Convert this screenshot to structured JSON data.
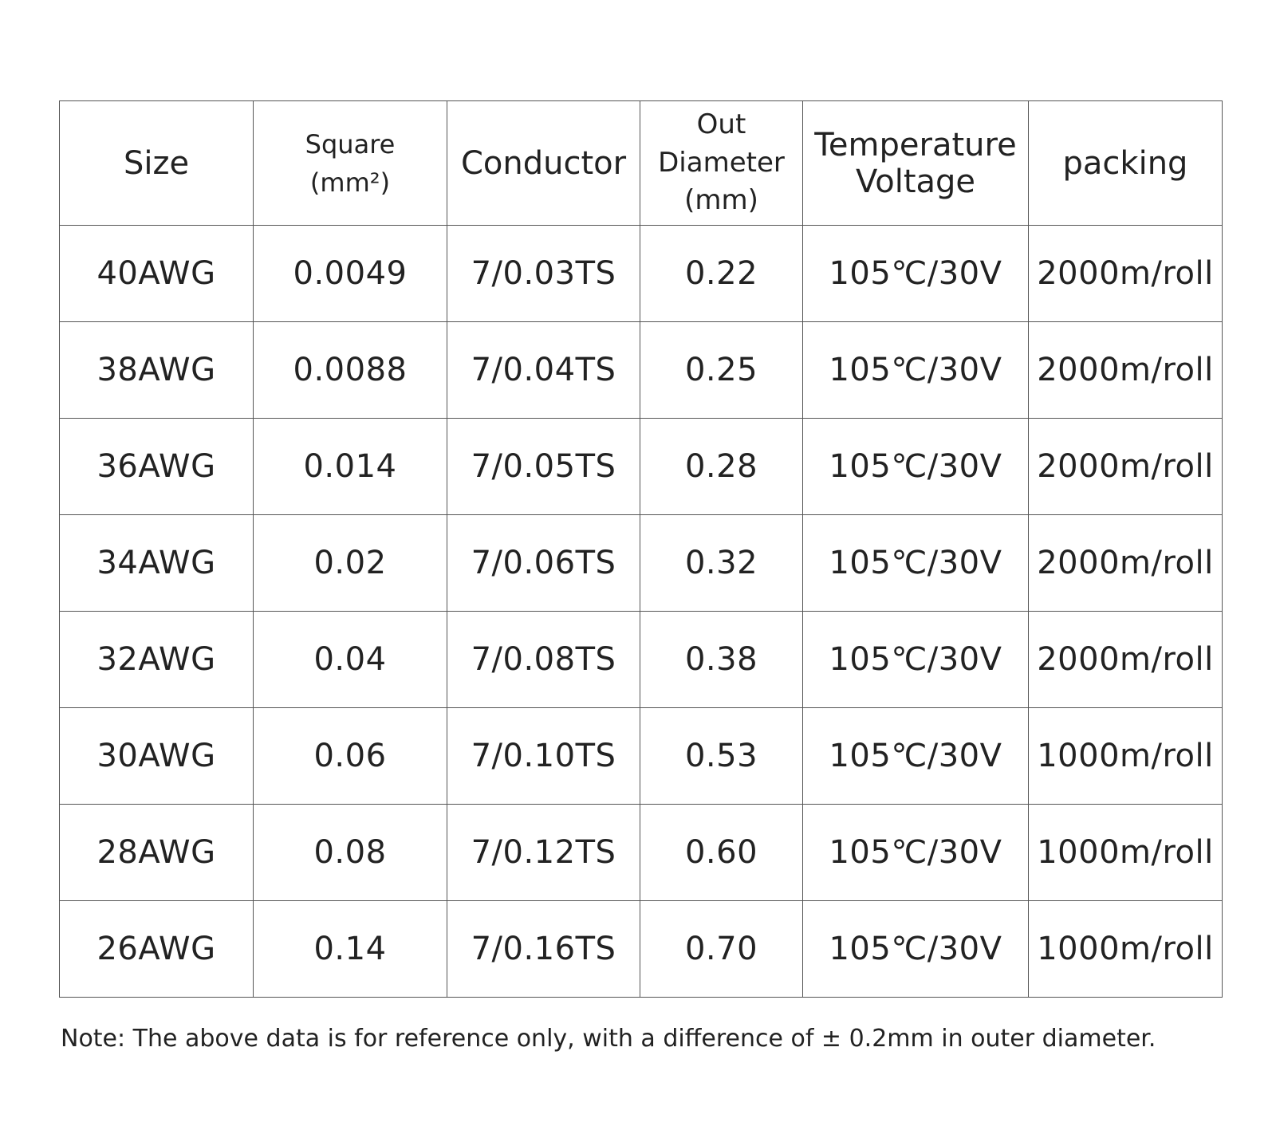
{
  "table": {
    "headers": {
      "size": "Size",
      "square_line1": "Square",
      "square_line2": "(mm²)",
      "conductor": "Conductor",
      "diameter_line1": "Out",
      "diameter_line2": "Diameter",
      "diameter_line3": "(mm)",
      "temp_line1": "Temperature",
      "temp_line2": "Voltage",
      "packing": "packing"
    },
    "rows": [
      [
        "40AWG",
        "0.0049",
        "7/0.03TS",
        "0.22",
        "105℃/30V",
        "2000m/roll"
      ],
      [
        "38AWG",
        "0.0088",
        "7/0.04TS",
        "0.25",
        "105℃/30V",
        "2000m/roll"
      ],
      [
        "36AWG",
        "0.014",
        "7/0.05TS",
        "0.28",
        "105℃/30V",
        "2000m/roll"
      ],
      [
        "34AWG",
        "0.02",
        "7/0.06TS",
        "0.32",
        "105℃/30V",
        "2000m/roll"
      ],
      [
        "32AWG",
        "0.04",
        "7/0.08TS",
        "0.38",
        "105℃/30V",
        "2000m/roll"
      ],
      [
        "30AWG",
        "0.06",
        "7/0.10TS",
        "0.53",
        "105℃/30V",
        "1000m/roll"
      ],
      [
        "28AWG",
        "0.08",
        "7/0.12TS",
        "0.60",
        "105℃/30V",
        "1000m/roll"
      ],
      [
        "26AWG",
        "0.14",
        "7/0.16TS",
        "0.70",
        "105℃/30V",
        "1000m/roll"
      ]
    ]
  },
  "note": "Note: The above data is for reference only, with a difference of ± 0.2mm in outer diameter."
}
